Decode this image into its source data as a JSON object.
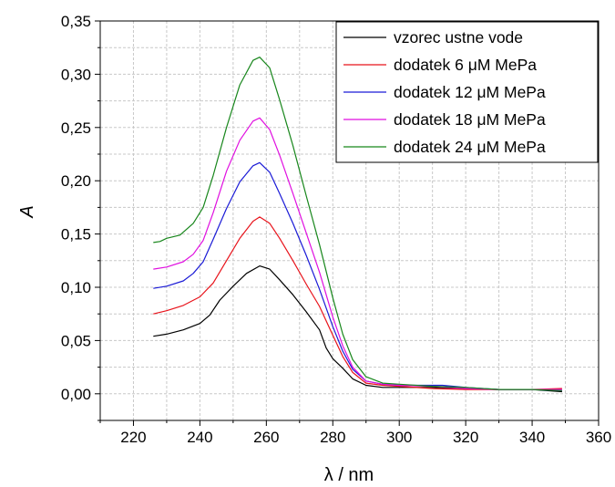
{
  "chart_data": {
    "type": "line",
    "xlabel": "λ / nm",
    "ylabel": "A",
    "xlim": [
      210,
      360
    ],
    "ylim": [
      -0.025,
      0.35
    ],
    "x_ticks": [
      "220",
      "240",
      "260",
      "280",
      "300",
      "320",
      "340",
      "360"
    ],
    "y_ticks": [
      "0,00",
      "0,05",
      "0,10",
      "0,15",
      "0,20",
      "0,25",
      "0,30",
      "0,35"
    ],
    "grid": true,
    "legend_position": "top-right",
    "series": [
      {
        "name": "vzorec ustne vode",
        "color": "#000000",
        "points": [
          [
            226,
            0.054
          ],
          [
            230,
            0.056
          ],
          [
            235,
            0.06
          ],
          [
            240,
            0.066
          ],
          [
            243,
            0.074
          ],
          [
            246,
            0.088
          ],
          [
            250,
            0.101
          ],
          [
            254,
            0.113
          ],
          [
            258,
            0.12
          ],
          [
            261,
            0.117
          ],
          [
            264,
            0.107
          ],
          [
            268,
            0.093
          ],
          [
            272,
            0.077
          ],
          [
            276,
            0.06
          ],
          [
            278,
            0.043
          ],
          [
            280,
            0.033
          ],
          [
            283,
            0.024
          ],
          [
            286,
            0.014
          ],
          [
            290,
            0.008
          ],
          [
            295,
            0.006
          ],
          [
            300,
            0.006
          ],
          [
            310,
            0.006
          ],
          [
            320,
            0.005
          ],
          [
            330,
            0.004
          ],
          [
            340,
            0.004
          ],
          [
            349,
            0.002
          ]
        ]
      },
      {
        "name": "dodatek 6 μM MePa",
        "color": "#e8131b",
        "points": [
          [
            226,
            0.075
          ],
          [
            230,
            0.078
          ],
          [
            235,
            0.083
          ],
          [
            240,
            0.091
          ],
          [
            244,
            0.104
          ],
          [
            248,
            0.125
          ],
          [
            252,
            0.146
          ],
          [
            256,
            0.162
          ],
          [
            258,
            0.166
          ],
          [
            261,
            0.16
          ],
          [
            264,
            0.146
          ],
          [
            268,
            0.125
          ],
          [
            272,
            0.103
          ],
          [
            276,
            0.082
          ],
          [
            280,
            0.055
          ],
          [
            283,
            0.035
          ],
          [
            286,
            0.02
          ],
          [
            290,
            0.01
          ],
          [
            295,
            0.008
          ],
          [
            300,
            0.007
          ],
          [
            310,
            0.005
          ],
          [
            320,
            0.004
          ],
          [
            330,
            0.004
          ],
          [
            340,
            0.004
          ],
          [
            349,
            0.005
          ]
        ]
      },
      {
        "name": "dodatek 12 μM MePa",
        "color": "#1a1ad6",
        "points": [
          [
            226,
            0.099
          ],
          [
            230,
            0.101
          ],
          [
            235,
            0.106
          ],
          [
            238,
            0.113
          ],
          [
            241,
            0.124
          ],
          [
            244,
            0.145
          ],
          [
            248,
            0.174
          ],
          [
            252,
            0.199
          ],
          [
            256,
            0.214
          ],
          [
            258,
            0.217
          ],
          [
            261,
            0.208
          ],
          [
            264,
            0.188
          ],
          [
            268,
            0.16
          ],
          [
            272,
            0.13
          ],
          [
            276,
            0.098
          ],
          [
            280,
            0.063
          ],
          [
            283,
            0.04
          ],
          [
            286,
            0.023
          ],
          [
            290,
            0.012
          ],
          [
            295,
            0.009
          ],
          [
            300,
            0.008
          ],
          [
            310,
            0.008
          ],
          [
            313,
            0.008
          ],
          [
            320,
            0.006
          ],
          [
            330,
            0.004
          ],
          [
            340,
            0.004
          ],
          [
            349,
            0.003
          ]
        ]
      },
      {
        "name": "dodatek 18 μM MePa",
        "color": "#e00fe0",
        "points": [
          [
            226,
            0.117
          ],
          [
            230,
            0.119
          ],
          [
            235,
            0.124
          ],
          [
            238,
            0.131
          ],
          [
            241,
            0.144
          ],
          [
            244,
            0.17
          ],
          [
            248,
            0.209
          ],
          [
            252,
            0.238
          ],
          [
            256,
            0.256
          ],
          [
            258,
            0.259
          ],
          [
            261,
            0.248
          ],
          [
            264,
            0.224
          ],
          [
            268,
            0.188
          ],
          [
            272,
            0.151
          ],
          [
            276,
            0.114
          ],
          [
            280,
            0.072
          ],
          [
            283,
            0.045
          ],
          [
            286,
            0.025
          ],
          [
            290,
            0.012
          ],
          [
            295,
            0.009
          ],
          [
            300,
            0.008
          ],
          [
            310,
            0.007
          ],
          [
            320,
            0.005
          ],
          [
            330,
            0.004
          ],
          [
            340,
            0.004
          ],
          [
            349,
            0.004
          ]
        ]
      },
      {
        "name": "dodatek 24 μM MePa",
        "color": "#17861b",
        "points": [
          [
            226,
            0.142
          ],
          [
            228,
            0.143
          ],
          [
            230,
            0.146
          ],
          [
            234,
            0.149
          ],
          [
            238,
            0.16
          ],
          [
            241,
            0.175
          ],
          [
            244,
            0.205
          ],
          [
            248,
            0.25
          ],
          [
            252,
            0.29
          ],
          [
            256,
            0.313
          ],
          [
            258,
            0.316
          ],
          [
            261,
            0.306
          ],
          [
            264,
            0.276
          ],
          [
            268,
            0.233
          ],
          [
            272,
            0.186
          ],
          [
            276,
            0.14
          ],
          [
            280,
            0.09
          ],
          [
            283,
            0.056
          ],
          [
            286,
            0.032
          ],
          [
            290,
            0.016
          ],
          [
            295,
            0.01
          ],
          [
            300,
            0.009
          ],
          [
            310,
            0.007
          ],
          [
            320,
            0.006
          ],
          [
            330,
            0.004
          ],
          [
            340,
            0.004
          ],
          [
            349,
            0.003
          ]
        ]
      }
    ]
  }
}
